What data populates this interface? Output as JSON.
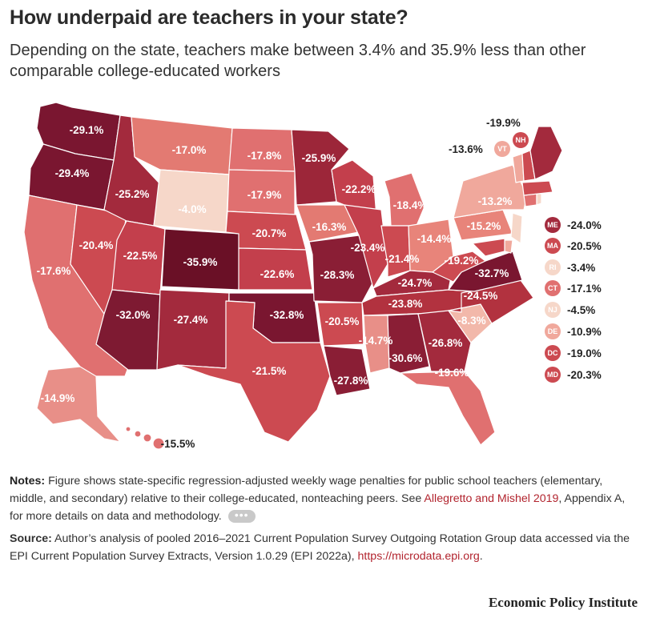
{
  "title": "How underpaid are teachers in your state?",
  "subtitle": "Depending on the state, teachers make between 3.4% and 35.9% less than other comparable college-educated workers",
  "colors": {
    "accent": "#b2242e",
    "darkest": "#6a1026",
    "lightest": "#f6d7c9"
  },
  "states": {
    "WA": "-29.1%",
    "OR": "-29.4%",
    "CA": "-17.6%",
    "NV": "-20.4%",
    "ID": "-25.2%",
    "MT": "-17.0%",
    "WY": "-4.0%",
    "UT": "-22.5%",
    "CO": "-35.9%",
    "AZ": "-32.0%",
    "NM": "-27.4%",
    "TX": "-21.5%",
    "OK": "-32.8%",
    "KS": "-22.6%",
    "NE": "-20.7%",
    "SD": "-17.9%",
    "ND": "-17.8%",
    "MN": "-25.9%",
    "IA": "-16.3%",
    "MO": "-28.3%",
    "AR": "-20.5%",
    "LA": "-27.8%",
    "MS": "-14.7%",
    "AL": "-30.6%",
    "WI": "-22.2%",
    "IL": "-23.4%",
    "MI": "-18.4%",
    "IN": "-21.4%",
    "OH": "-14.4%",
    "KY": "-24.7%",
    "TN": "-23.8%",
    "GA": "-26.8%",
    "FL": "-19.6%",
    "SC": "-8.3%",
    "NC": "-24.5%",
    "VA": "-32.7%",
    "WV": "-19.2%",
    "PA": "-15.2%",
    "NY": "-13.2%",
    "AK": "-14.9%",
    "HI": "-15.5%"
  },
  "callouts": {
    "NH": {
      "label": "NH",
      "value": "-19.9%"
    },
    "VT": {
      "label": "VT",
      "value": "-13.6%"
    }
  },
  "legend_states": [
    {
      "label": "ME",
      "value": "-24.0%"
    },
    {
      "label": "MA",
      "value": "-20.5%"
    },
    {
      "label": "RI",
      "value": "-3.4%"
    },
    {
      "label": "CT",
      "value": "-17.1%"
    },
    {
      "label": "NJ",
      "value": "-4.5%"
    },
    {
      "label": "DE",
      "value": "-10.9%"
    },
    {
      "label": "DC",
      "value": "-19.0%"
    },
    {
      "label": "MD",
      "value": "-20.3%"
    }
  ],
  "notes": {
    "label": "Notes:",
    "text": "Figure shows state-specific regression-adjusted weekly wage penalties for public school teachers (elementary, middle, and secondary) relative to their college-educated, nonteaching peers.",
    "see": "See",
    "link": "Allegretto and Mishel 2019",
    "after_link": ", Appendix A, for more details on data and methodology.",
    "more": "•••"
  },
  "source": {
    "label": "Source:",
    "text": "Author’s analysis of pooled 2016–2021 Current Population Survey Outgoing Rotation Group data accessed via the EPI Current Population Survey Extracts, Version 1.0.29 (EPI 2022a),",
    "link": "https://microdata.epi.org",
    "end": "."
  },
  "brand": "Economic Policy Institute"
}
